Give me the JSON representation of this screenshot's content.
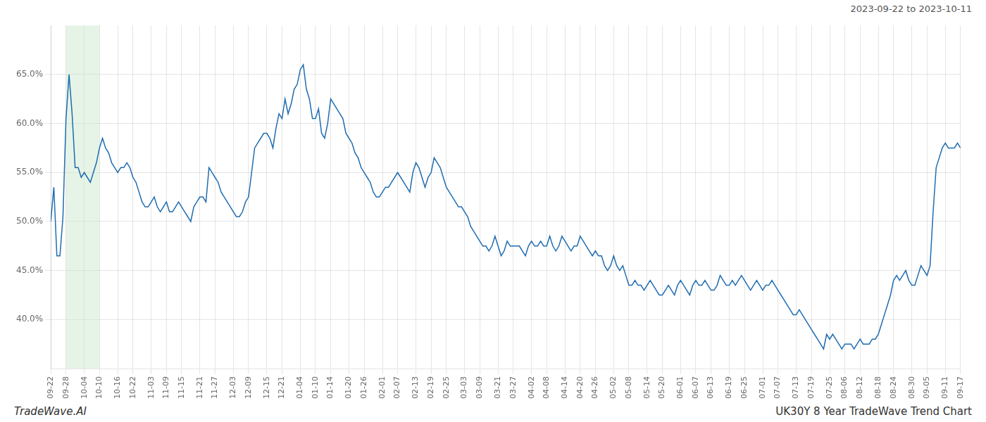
{
  "chart_data": {
    "type": "line",
    "title": "UK30Y 8 Year TradeWave Trend Chart",
    "subtitle": "2023-09-22 to 2023-10-11",
    "annotations": [
      "TradeWave.AI"
    ],
    "color": "#1f6cb0",
    "ylim": [
      35,
      70
    ],
    "yticks": [
      {
        "value": 40.0,
        "label": "40.0%"
      },
      {
        "value": 45.0,
        "label": "45.0%"
      },
      {
        "value": 50.0,
        "label": "50.0%"
      },
      {
        "value": 55.0,
        "label": "55.0%"
      },
      {
        "value": 60.0,
        "label": "60.0%"
      },
      {
        "value": 65.0,
        "label": "65.0%"
      }
    ],
    "grid": true,
    "highlight": {
      "x": [
        "09-28",
        "10-10"
      ],
      "color": "#c8e6c9"
    },
    "categories": [
      "09-22",
      null,
      null,
      null,
      null,
      "09-28",
      null,
      null,
      null,
      null,
      null,
      "10-04",
      null,
      null,
      null,
      null,
      "10-10",
      null,
      null,
      null,
      null,
      null,
      "10-16",
      null,
      null,
      null,
      null,
      "10-22",
      null,
      null,
      null,
      null,
      null,
      "11-03",
      null,
      null,
      null,
      null,
      "11-09",
      null,
      null,
      null,
      null,
      "11-15",
      null,
      null,
      null,
      null,
      null,
      "11-21",
      null,
      null,
      null,
      null,
      "11-27",
      null,
      null,
      null,
      null,
      null,
      "12-03",
      null,
      null,
      null,
      null,
      "12-09",
      null,
      null,
      null,
      null,
      null,
      "12-15",
      null,
      null,
      null,
      null,
      "12-21",
      null,
      null,
      null,
      null,
      null,
      "01-04",
      null,
      null,
      null,
      null,
      "01-10",
      null,
      null,
      null,
      null,
      "01-14",
      null,
      null,
      null,
      null,
      null,
      "01-20",
      null,
      null,
      null,
      null,
      "01-26",
      null,
      null,
      null,
      null,
      null,
      "02-01",
      null,
      null,
      null,
      null,
      "02-07",
      null,
      null,
      null,
      null,
      null,
      "02-13",
      null,
      null,
      null,
      null,
      "02-19",
      null,
      null,
      null,
      null,
      "02-25",
      null,
      null,
      null,
      null,
      null,
      "03-03",
      null,
      null,
      null,
      null,
      "03-09",
      null,
      null,
      null,
      null,
      null,
      "03-21",
      null,
      null,
      null,
      null,
      "03-27",
      null,
      null,
      null,
      null,
      null,
      "04-02",
      null,
      null,
      null,
      null,
      "04-08",
      null,
      null,
      null,
      null,
      null,
      "04-14",
      null,
      null,
      null,
      null,
      "04-20",
      null,
      null,
      null,
      null,
      "04-26",
      null,
      null,
      null,
      null,
      null,
      "05-02",
      null,
      null,
      null,
      null,
      "05-08",
      null,
      null,
      null,
      null,
      null,
      "05-14",
      null,
      null,
      null,
      null,
      "05-20",
      null,
      null,
      null,
      null,
      null,
      "06-01",
      null,
      null,
      null,
      null,
      "06-07",
      null,
      null,
      null,
      null,
      "06-13",
      null,
      null,
      null,
      null,
      null,
      "06-19",
      null,
      null,
      null,
      null,
      "06-25",
      null,
      null,
      null,
      null,
      null,
      "07-01",
      null,
      null,
      null,
      null,
      "07-07",
      null,
      null,
      null,
      null,
      null,
      "07-13",
      null,
      null,
      null,
      null,
      "07-19",
      null,
      null,
      null,
      null,
      null,
      "07-25",
      null,
      null,
      null,
      null,
      "08-06",
      null,
      null,
      null,
      null,
      "08-12",
      null,
      null,
      null,
      null,
      null,
      "08-18",
      null,
      null,
      null,
      null,
      "08-24",
      null,
      null,
      null,
      null,
      null,
      "08-30",
      null,
      null,
      null,
      null,
      "09-05",
      null,
      null,
      null,
      null,
      null,
      "09-11",
      null,
      null,
      null,
      null,
      "09-17"
    ],
    "values": [
      50.0,
      53.5,
      46.5,
      46.5,
      50.5,
      60.5,
      65.0,
      61.0,
      55.5,
      55.5,
      54.5,
      55.0,
      54.5,
      54.0,
      55.0,
      56.0,
      57.5,
      58.5,
      57.5,
      57.0,
      56.0,
      55.5,
      55.0,
      55.5,
      55.5,
      56.0,
      55.5,
      54.5,
      54.0,
      53.0,
      52.0,
      51.5,
      51.5,
      52.0,
      52.5,
      51.5,
      51.0,
      51.5,
      52.0,
      51.0,
      51.0,
      51.5,
      52.0,
      51.5,
      51.0,
      50.5,
      50.0,
      51.5,
      52.0,
      52.5,
      52.5,
      52.0,
      55.5,
      55.0,
      54.5,
      54.0,
      53.0,
      52.5,
      52.0,
      51.5,
      51.0,
      50.5,
      50.5,
      51.0,
      52.0,
      52.5,
      55.0,
      57.5,
      58.0,
      58.5,
      59.0,
      59.0,
      58.5,
      57.5,
      59.5,
      61.0,
      60.5,
      62.5,
      61.0,
      62.0,
      63.5,
      64.0,
      65.5,
      66.0,
      63.5,
      62.5,
      60.5,
      60.5,
      61.5,
      59.0,
      58.5,
      60.0,
      62.5,
      62.0,
      61.5,
      61.0,
      60.5,
      59.0,
      58.5,
      58.0,
      57.0,
      56.5,
      55.5,
      55.0,
      54.5,
      54.0,
      53.0,
      52.5,
      52.5,
      53.0,
      53.5,
      53.5,
      54.0,
      54.5,
      55.0,
      54.5,
      54.0,
      53.5,
      53.0,
      55.0,
      56.0,
      55.5,
      54.5,
      53.5,
      54.5,
      55.0,
      56.5,
      56.0,
      55.5,
      54.5,
      53.5,
      53.0,
      52.5,
      52.0,
      51.5,
      51.5,
      51.0,
      50.5,
      49.5,
      49.0,
      48.5,
      48.0,
      47.5,
      47.5,
      47.0,
      47.5,
      48.5,
      47.5,
      46.5,
      47.0,
      48.0,
      47.5,
      47.5,
      47.5,
      47.5,
      47.0,
      46.5,
      47.5,
      48.0,
      47.5,
      47.5,
      48.0,
      47.5,
      47.5,
      48.5,
      47.5,
      47.0,
      47.5,
      48.5,
      48.0,
      47.5,
      47.0,
      47.5,
      47.5,
      48.5,
      48.0,
      47.5,
      47.0,
      46.5,
      47.0,
      46.5,
      46.5,
      45.5,
      45.0,
      45.5,
      46.5,
      45.5,
      45.0,
      45.5,
      44.5,
      43.5,
      43.5,
      44.0,
      43.5,
      43.5,
      43.0,
      43.5,
      44.0,
      43.5,
      43.0,
      42.5,
      42.5,
      43.0,
      43.5,
      43.0,
      42.5,
      43.5,
      44.0,
      43.5,
      43.0,
      42.5,
      43.5,
      44.0,
      43.5,
      43.5,
      44.0,
      43.5,
      43.0,
      43.0,
      43.5,
      44.5,
      44.0,
      43.5,
      43.5,
      44.0,
      43.5,
      44.0,
      44.5,
      44.0,
      43.5,
      43.0,
      43.5,
      44.0,
      43.5,
      43.0,
      43.5,
      43.5,
      44.0,
      43.5,
      43.0,
      42.5,
      42.0,
      41.5,
      41.0,
      40.5,
      40.5,
      41.0,
      40.5,
      40.0,
      39.5,
      39.0,
      38.5,
      38.0,
      37.5,
      37.0,
      38.5,
      38.0,
      38.5,
      38.0,
      37.5,
      37.0,
      37.5,
      37.5,
      37.5,
      37.0,
      37.5,
      38.0,
      37.5,
      37.5,
      37.5,
      38.0,
      38.0,
      38.5,
      39.5,
      40.5,
      41.5,
      42.5,
      44.0,
      44.5,
      44.0,
      44.5,
      45.0,
      44.0,
      43.5,
      43.5,
      44.5,
      45.5,
      45.0,
      44.5,
      45.5,
      51.0,
      55.5,
      56.5,
      57.5,
      58.0,
      57.5,
      57.5,
      57.5,
      58.0,
      57.5
    ]
  }
}
